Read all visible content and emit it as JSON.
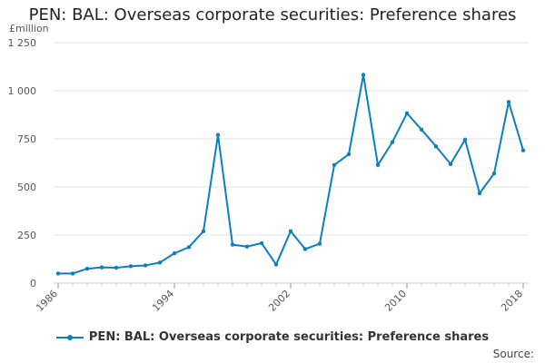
{
  "chart_data": {
    "type": "line",
    "title": "PEN: BAL: Overseas corporate securities: Preference shares",
    "unit_label": "£million",
    "xlabel": "",
    "ylabel": "",
    "x_range": [
      1986,
      2018
    ],
    "ylim": [
      0,
      1250
    ],
    "y_ticks": [
      {
        "value": 0,
        "label": "0"
      },
      {
        "value": 250,
        "label": "250"
      },
      {
        "value": 500,
        "label": "500"
      },
      {
        "value": 750,
        "label": "750"
      },
      {
        "value": 1000,
        "label": "1 000"
      },
      {
        "value": 1250,
        "label": "1 250"
      }
    ],
    "x_ticks": [
      {
        "value": 1986,
        "label": "1986"
      },
      {
        "value": 1994,
        "label": "1994"
      },
      {
        "value": 2002,
        "label": "2002"
      },
      {
        "value": 2010,
        "label": "2010"
      },
      {
        "value": 2018,
        "label": "2018"
      }
    ],
    "grid": true,
    "legend_position": "bottom",
    "series": [
      {
        "name": "PEN: BAL: Overseas corporate securities: Preference shares",
        "color": "#0b7fbf",
        "x": [
          1986,
          1987,
          1988,
          1989,
          1990,
          1991,
          1992,
          1993,
          1994,
          1995,
          1996,
          1997,
          1998,
          1999,
          2000,
          2001,
          2002,
          2003,
          2004,
          2005,
          2006,
          2007,
          2008,
          2009,
          2010,
          2011,
          2012,
          2013,
          2014,
          2015,
          2016,
          2017,
          2018
        ],
        "values": [
          50,
          50,
          75,
          82,
          80,
          88,
          92,
          107,
          155,
          187,
          270,
          770,
          200,
          190,
          208,
          97,
          270,
          177,
          205,
          614,
          670,
          1083,
          614,
          733,
          883,
          798,
          711,
          619,
          746,
          467,
          570,
          942,
          690
        ]
      }
    ]
  },
  "source_label": "Source:"
}
